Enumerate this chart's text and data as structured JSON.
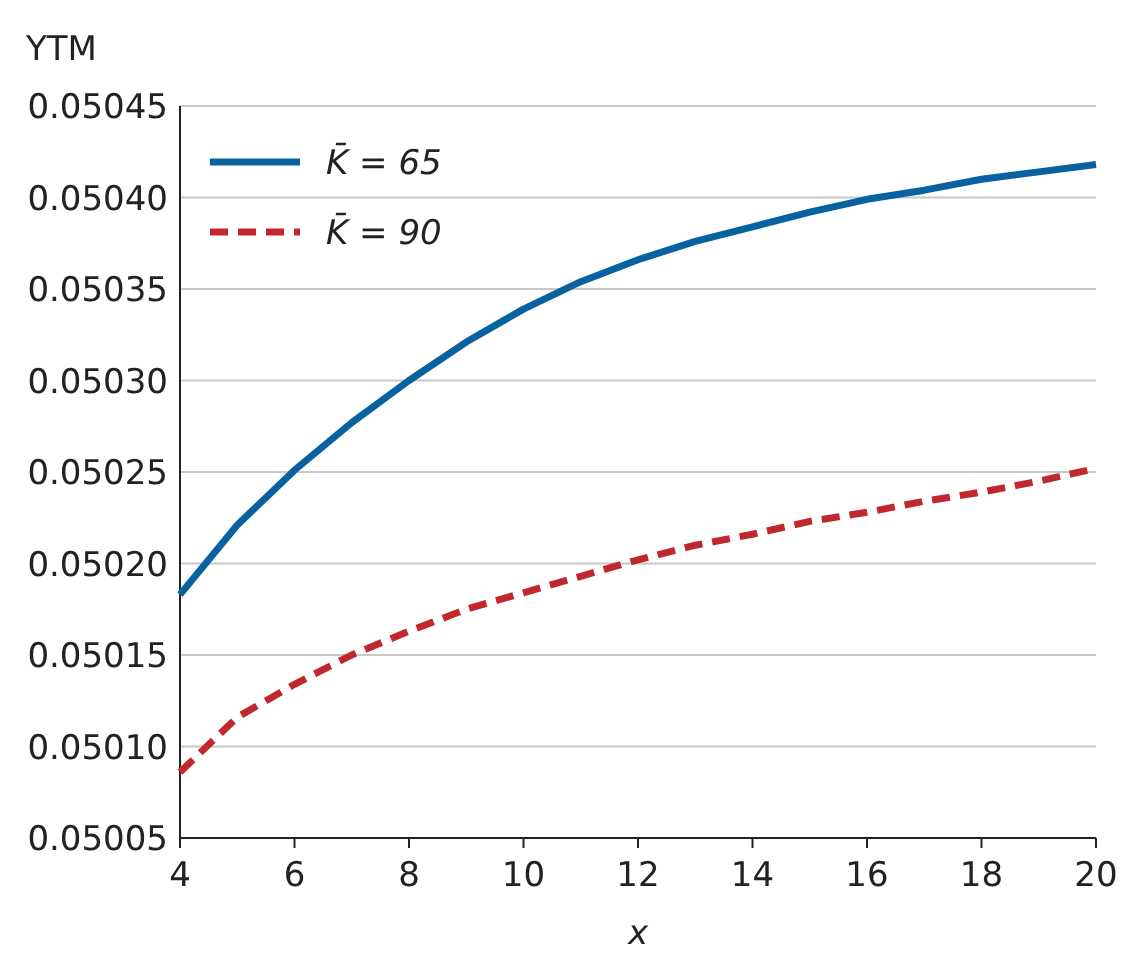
{
  "chart_data": {
    "type": "line",
    "ylabel": "YTM",
    "xlabel": "x",
    "x": [
      4,
      5,
      6,
      7,
      8,
      9,
      10,
      11,
      12,
      13,
      14,
      15,
      16,
      17,
      18,
      19,
      20
    ],
    "series": [
      {
        "name": "K̄ = 65",
        "color": "#0862a0",
        "line_style": "solid",
        "values": [
          0.050183,
          0.050221,
          0.050251,
          0.050277,
          0.0503,
          0.050321,
          0.050339,
          0.050354,
          0.050366,
          0.050376,
          0.050384,
          0.050392,
          0.050399,
          0.050404,
          0.05041,
          0.050414,
          0.050418
        ]
      },
      {
        "name": "K̄ = 90",
        "color": "#c0282d",
        "line_style": "dashed",
        "values": [
          0.050086,
          0.050116,
          0.050134,
          0.05015,
          0.050163,
          0.050175,
          0.050184,
          0.050193,
          0.050202,
          0.05021,
          0.050216,
          0.050223,
          0.050228,
          0.050234,
          0.050239,
          0.050245,
          0.050252
        ]
      }
    ],
    "xlim": [
      4,
      20
    ],
    "xticks": [
      4,
      6,
      8,
      10,
      12,
      14,
      16,
      18,
      20
    ],
    "ylim": [
      0.05005,
      0.05045
    ],
    "yticks": [
      0.05005,
      {
        "value": 0.0501,
        "label": "0.05010"
      },
      0.05015,
      {
        "value": 0.0502,
        "label": "0.05020"
      },
      0.05025,
      {
        "value": 0.0503,
        "label": "0.05030"
      },
      0.05035,
      {
        "value": 0.0504,
        "label": "0.05040"
      },
      0.05045
    ],
    "grid": "y",
    "legend": "top left",
    "marker": "none"
  }
}
